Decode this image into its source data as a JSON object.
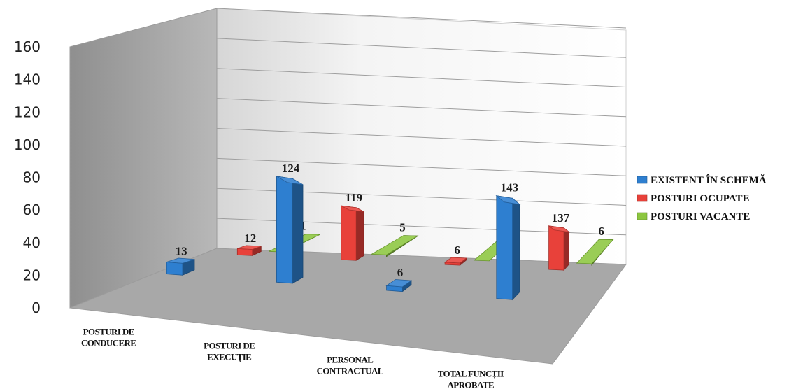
{
  "chart_data": {
    "type": "bar",
    "title": "",
    "xlabel": "",
    "ylabel": "",
    "ylim": [
      0,
      160
    ],
    "yticks": [
      0,
      20,
      40,
      60,
      80,
      100,
      120,
      140,
      160
    ],
    "grid": true,
    "legend_position": "right",
    "style": "3d-clustered-column",
    "categories": [
      [
        "POSTURI DE",
        "CONDUCERE"
      ],
      [
        "POSTURI DE",
        "EXECUȚIE"
      ],
      [
        "PERSONAL",
        "CONTRACTUAL"
      ],
      [
        "TOTAL FUNCȚII",
        "APROBATE"
      ]
    ],
    "series": [
      {
        "name": "EXISTENT ÎN SCHEMĂ",
        "values": [
          13,
          124,
          6,
          143
        ],
        "color": "#2e7fd0"
      },
      {
        "name": "POSTURI OCUPATE",
        "values": [
          12,
          119,
          6,
          137
        ],
        "color": "#e8413a"
      },
      {
        "name": "POSTURI VACANTE",
        "values": [
          1,
          5,
          0,
          6
        ],
        "color": "#8cc63f"
      }
    ]
  }
}
